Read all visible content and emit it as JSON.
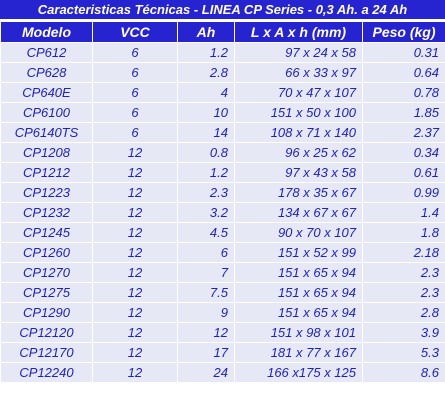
{
  "title": "Caracteristicas Técnicas - LINEA CP Series - 0,3 Ah. a 24 Ah",
  "columns": [
    "Modelo",
    "VCC",
    "Ah",
    "L x A x h (mm)",
    "Peso (kg)"
  ],
  "rows": [
    [
      "CP612",
      "6",
      "1.2",
      "97 x 24 x 58",
      "0.31"
    ],
    [
      "CP628",
      "6",
      "2.8",
      "66 x 33 x 97",
      "0.64"
    ],
    [
      "CP640E",
      "6",
      "4",
      "70 x 47 x 107",
      "0.78"
    ],
    [
      "CP6100",
      "6",
      "10",
      "151 x 50 x 100",
      "1.85"
    ],
    [
      "CP6140TS",
      "6",
      "14",
      "108 x 71 x 140",
      "2.37"
    ],
    [
      "CP1208",
      "12",
      "0.8",
      "96 x 25 x 62",
      "0.34"
    ],
    [
      "CP1212",
      "12",
      "1.2",
      "97 x 43 x 58",
      "0.61"
    ],
    [
      "CP1223",
      "12",
      "2.3",
      "178 x 35 x 67",
      "0.99"
    ],
    [
      "CP1232",
      "12",
      "3.2",
      "134 x 67 x 67",
      "1.4"
    ],
    [
      "CP1245",
      "12",
      "4.5",
      "90 x 70 x 107",
      "1.8"
    ],
    [
      "CP1260",
      "12",
      "6",
      "151 x 52 x 99",
      "2.18"
    ],
    [
      "CP1270",
      "12",
      "7",
      "151 x 65 x 94",
      "2.3"
    ],
    [
      "CP1275",
      "12",
      "7.5",
      "151 x 65 x 94",
      "2.3"
    ],
    [
      "CP1290",
      "12",
      "9",
      "151 x 65 x 94",
      "2.8"
    ],
    [
      "CP12120",
      "12",
      "12",
      "151 x 98 x 101",
      "3.9"
    ],
    [
      "CP12170",
      "12",
      "17",
      "181 x 77 x 167",
      "5.3"
    ],
    [
      "CP12240",
      "12",
      "24",
      "166 x175 x 125",
      "8.6"
    ]
  ]
}
